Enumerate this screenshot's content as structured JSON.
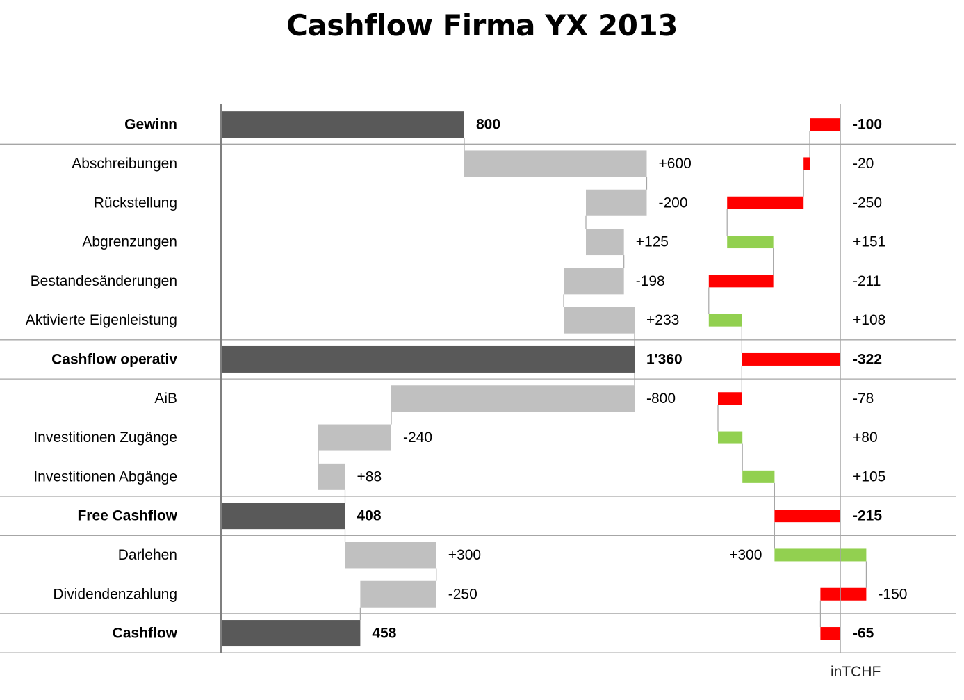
{
  "chart_data": {
    "type": "bar",
    "title": "Cashflow Firma YX 2013",
    "unit": "inTCHF",
    "colors": {
      "total": "#595959",
      "delta": "#c0c0c0",
      "negative": "#ff0000",
      "positive": "#92d050",
      "grid": "#a6a6a6",
      "axis": "#7f7f7f"
    },
    "rows": [
      {
        "label": "Gewinn",
        "kind": "total",
        "value": 800,
        "value_label": "800",
        "variance": -100,
        "variance_label": "-100"
      },
      {
        "label": "Abschreibungen",
        "kind": "delta",
        "value": 600,
        "value_label": "+600",
        "variance": -20,
        "variance_label": "-20"
      },
      {
        "label": "Rückstellung",
        "kind": "delta",
        "value": -200,
        "value_label": "-200",
        "variance": -250,
        "variance_label": "-250"
      },
      {
        "label": "Abgrenzungen",
        "kind": "delta",
        "value": 125,
        "value_label": "+125",
        "variance": 151,
        "variance_label": "+151"
      },
      {
        "label": "Bestandesänderungen",
        "kind": "delta",
        "value": -198,
        "value_label": "-198",
        "variance": -211,
        "variance_label": "-211"
      },
      {
        "label": "Aktivierte  Eigenleistung",
        "kind": "delta",
        "value": 233,
        "value_label": "+233",
        "variance": 108,
        "variance_label": "+108"
      },
      {
        "label": "Cashflow operativ",
        "kind": "total",
        "value": 1360,
        "value_label": "1'360",
        "variance": -322,
        "variance_label": "-322"
      },
      {
        "label": "AiB",
        "kind": "delta",
        "value": -800,
        "value_label": "-800",
        "variance": -78,
        "variance_label": "-78"
      },
      {
        "label": "Investitionen  Zugänge",
        "kind": "delta",
        "value": -240,
        "value_label": "-240",
        "variance": 80,
        "variance_label": "+80"
      },
      {
        "label": "Investitionen  Abgänge",
        "kind": "delta",
        "value": 88,
        "value_label": "+88",
        "variance": 105,
        "variance_label": "+105"
      },
      {
        "label": "Free Cashflow",
        "kind": "total",
        "value": 408,
        "value_label": "408",
        "variance": -215,
        "variance_label": "-215"
      },
      {
        "label": "Darlehen",
        "kind": "delta",
        "value": 300,
        "value_label": "+300",
        "variance": 300,
        "variance_label": "+300"
      },
      {
        "label": "Dividendenzahlung",
        "kind": "delta",
        "value": -250,
        "value_label": "-250",
        "variance": -150,
        "variance_label": "-150"
      },
      {
        "label": "Cashflow",
        "kind": "total",
        "value": 458,
        "value_label": "458",
        "variance": -65,
        "variance_label": "-65"
      }
    ]
  }
}
